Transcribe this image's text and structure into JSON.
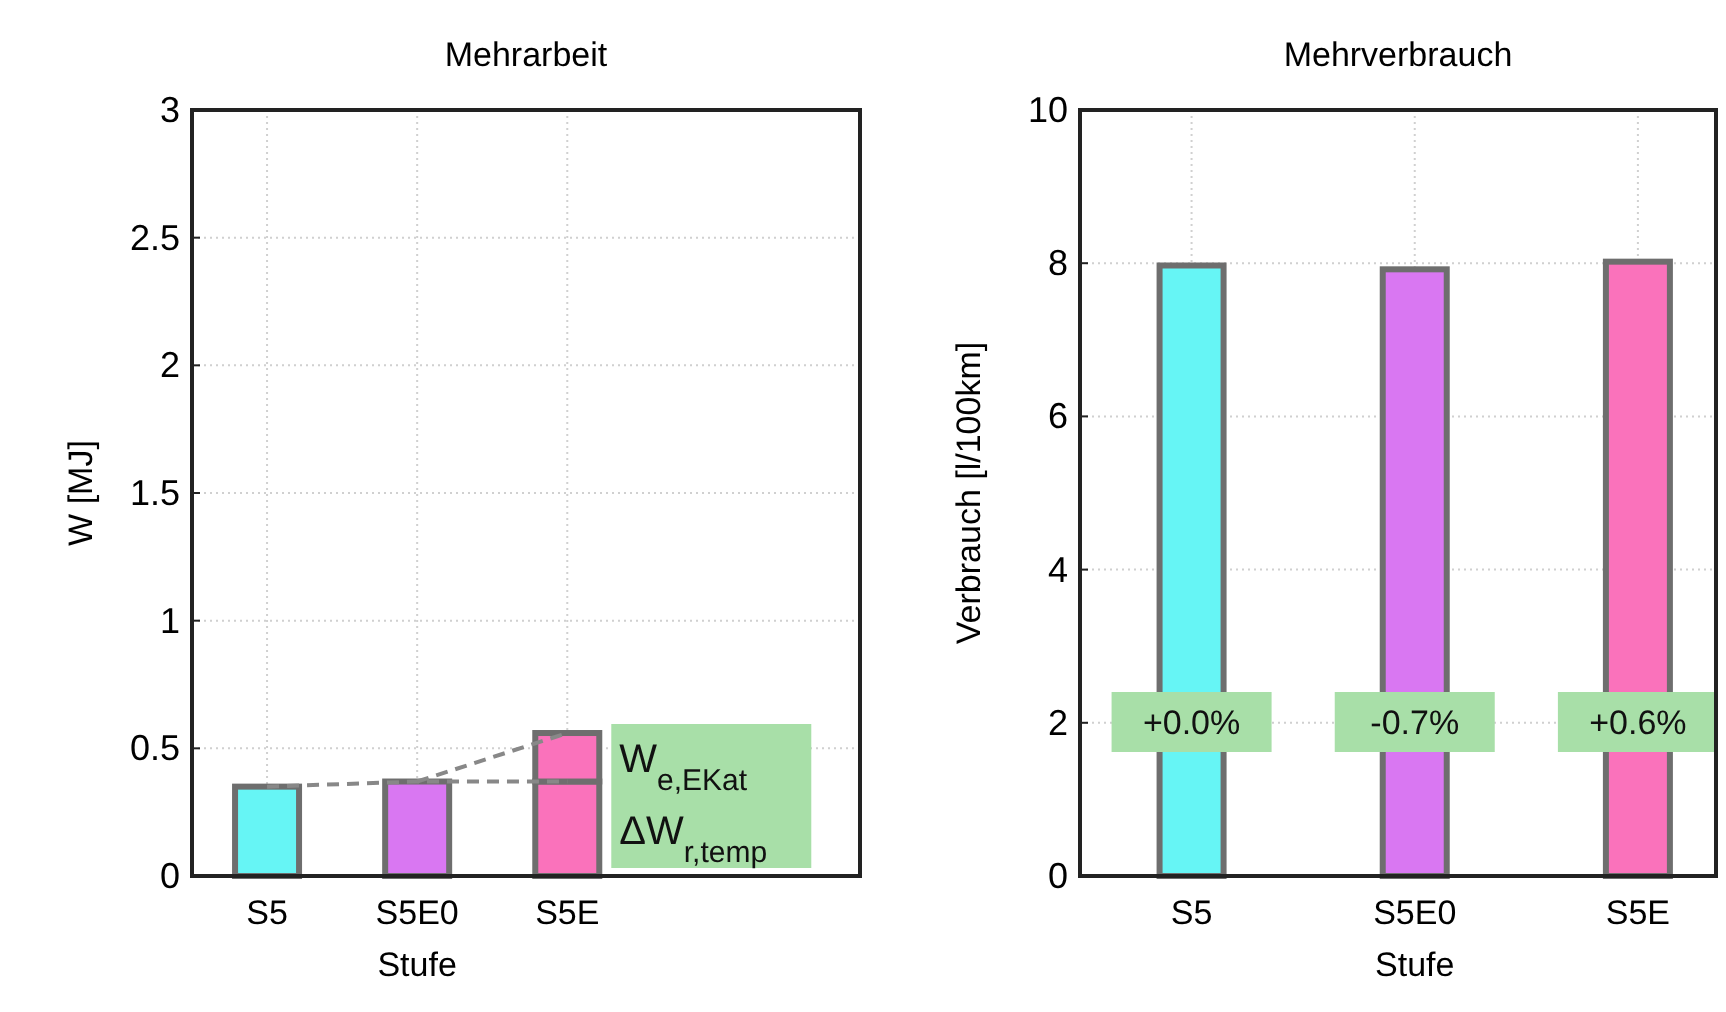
{
  "chart_data": [
    {
      "type": "bar",
      "title": "Mehrarbeit",
      "xlabel": "Stufe",
      "ylabel": "W [MJ]",
      "categories": [
        "S5",
        "S5E0",
        "S5E"
      ],
      "stacked": true,
      "ylim": [
        0,
        3
      ],
      "yticks": [
        0,
        0.5,
        1,
        1.5,
        2,
        2.5,
        3
      ],
      "grid": true,
      "series": [
        {
          "values": [
            0.35,
            0.37,
            0.37
          ],
          "colors": [
            "#66f5f5",
            "#d977f2",
            "#fa72bb"
          ]
        },
        {
          "values": [
            null,
            null,
            0.19
          ],
          "color": "#fa72bb"
        },
        {
          "type": "line",
          "values": [
            0.35,
            0.37,
            0.37
          ],
          "color": "#888888",
          "line_style": "dashed",
          "marker": "none"
        },
        {
          "type": "line",
          "values": [
            null,
            0.37,
            0.56
          ],
          "color": "#888888",
          "line_style": "dashed",
          "marker": "none"
        }
      ],
      "annotations": [
        "W$_{e,EKat}$",
        "ΔW$_{r,temp}$"
      ]
    },
    {
      "type": "bar",
      "title": "Mehrverbrauch",
      "xlabel": "Stufe",
      "ylabel": "Verbrauch [l/100km]",
      "categories": [
        "S5",
        "S5E0",
        "S5E"
      ],
      "ylim": [
        0,
        10
      ],
      "yticks": [
        0,
        2,
        4,
        6,
        8,
        10
      ],
      "grid": true,
      "series": [
        {
          "values": [
            7.97,
            7.92,
            8.02
          ],
          "colors": [
            "#66f5f5",
            "#d977f2",
            "#fa72bb"
          ]
        }
      ],
      "annotations": [
        "+0.0%",
        "-0.7%",
        "+0.6%"
      ]
    }
  ]
}
